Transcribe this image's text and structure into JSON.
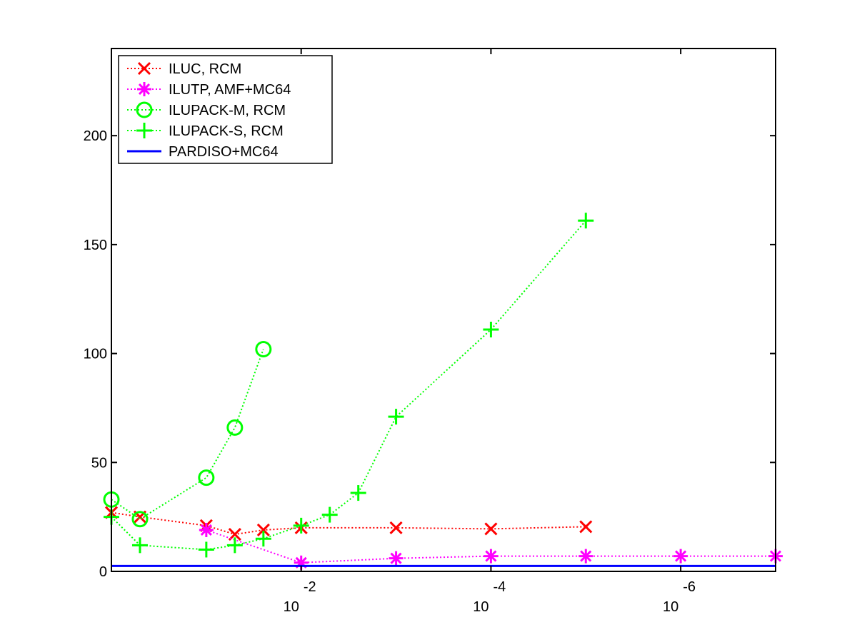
{
  "chart_data": {
    "type": "line",
    "x_scale": "log",
    "x_reversed": true,
    "xlim": [
      1,
      1e-07
    ],
    "ylim": [
      0,
      240
    ],
    "yticks": [
      0,
      50,
      100,
      150,
      200
    ],
    "xticks": [
      {
        "value": 0.01,
        "base": "10",
        "exp": "-2"
      },
      {
        "value": 0.0001,
        "base": "10",
        "exp": "-4"
      },
      {
        "value": 1e-06,
        "base": "10",
        "exp": "-6"
      }
    ],
    "grid": false,
    "legend_position": "top-left",
    "series": [
      {
        "name": "ILUC, RCM",
        "color": "#ff0000",
        "marker": "x",
        "linestyle": "dotted",
        "x": [
          1,
          0.5,
          0.1,
          0.05,
          0.025,
          0.01,
          0.001,
          0.0001,
          1e-05
        ],
        "y": [
          27,
          25,
          21,
          17,
          19,
          20,
          20,
          19.5,
          20.5
        ]
      },
      {
        "name": "ILUTP, AMF+MC64",
        "color": "#ff00ff",
        "marker": "asterisk",
        "linestyle": "dotted",
        "x": [
          0.1,
          0.01,
          0.001,
          0.0001,
          1e-05,
          1e-06,
          1e-07
        ],
        "y": [
          19,
          4,
          6,
          7,
          7,
          7,
          7
        ]
      },
      {
        "name": "ILUPACK-M, RCM",
        "color": "#00ff00",
        "marker": "circle",
        "linestyle": "dotted",
        "x": [
          1,
          0.5,
          0.1,
          0.05,
          0.025
        ],
        "y": [
          33,
          24,
          43,
          66,
          102
        ]
      },
      {
        "name": "ILUPACK-S, RCM",
        "color": "#00ff00",
        "marker": "plus",
        "linestyle": "dotted",
        "x": [
          1,
          0.5,
          0.1,
          0.05,
          0.025,
          0.01,
          0.005,
          0.0025,
          0.001,
          0.0001,
          1e-05
        ],
        "y": [
          25,
          12,
          10,
          12,
          15,
          21,
          26,
          36,
          71,
          111,
          161
        ]
      },
      {
        "name": "PARDISO+MC64",
        "color": "#0000ff",
        "marker": "none",
        "linestyle": "solid",
        "x": [
          1,
          1e-07
        ],
        "y": [
          2.5,
          2.5
        ]
      }
    ]
  }
}
